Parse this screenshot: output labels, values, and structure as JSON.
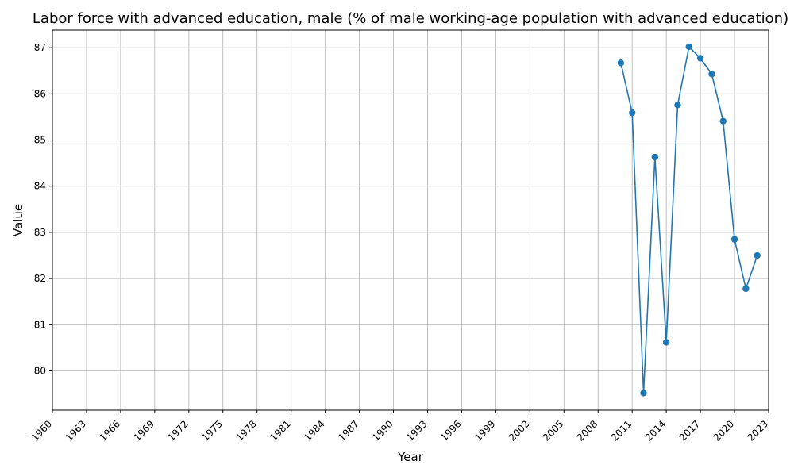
{
  "chart_data": {
    "type": "line",
    "title": "Labor force with advanced education, male (% of male working-age population with advanced education)",
    "xlabel": "Year",
    "ylabel": "Value",
    "xlim": [
      1960,
      2023
    ],
    "ylim": [
      79.15,
      87.38
    ],
    "grid": true,
    "x_ticks": [
      1960,
      1963,
      1966,
      1969,
      1972,
      1975,
      1978,
      1981,
      1984,
      1987,
      1990,
      1993,
      1996,
      1999,
      2002,
      2005,
      2008,
      2011,
      2014,
      2017,
      2020,
      2023
    ],
    "y_ticks": [
      80,
      81,
      82,
      83,
      84,
      85,
      86,
      87
    ],
    "series": [
      {
        "color": "#1f77b4",
        "marker": "circle",
        "x": [
          2010,
          2011,
          2012,
          2013,
          2014,
          2015,
          2016,
          2017,
          2018,
          2019,
          2020,
          2021,
          2022
        ],
        "y": [
          86.67,
          85.59,
          79.52,
          84.63,
          80.62,
          85.76,
          87.02,
          86.77,
          86.43,
          85.41,
          82.85,
          81.78,
          82.5
        ]
      }
    ]
  }
}
